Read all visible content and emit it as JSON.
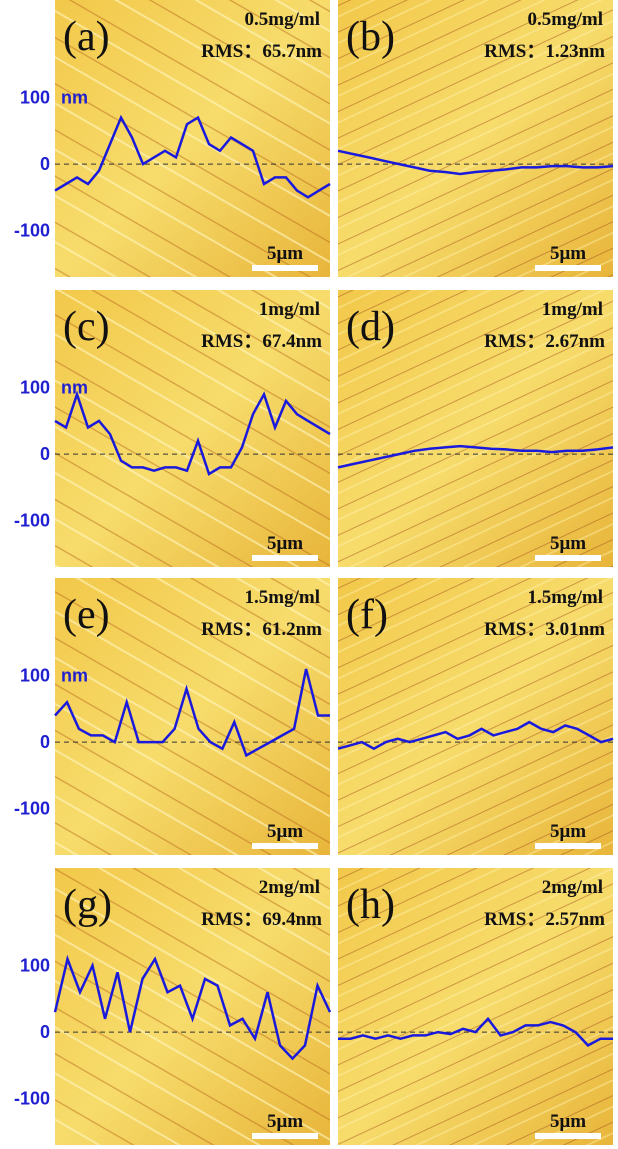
{
  "chart_data": [
    {
      "type": "line",
      "title": "(a)",
      "annotations": [
        "0.5mg/ml",
        "RMS：65.7nm",
        "5μm"
      ],
      "ylabel": "nm",
      "color": "#1a1adc",
      "ylim": [
        -170,
        247
      ],
      "yticks": [
        100,
        0,
        -100
      ],
      "values": [
        -40,
        -30,
        -20,
        -30,
        -10,
        30,
        70,
        40,
        0,
        10,
        20,
        10,
        60,
        70,
        30,
        20,
        40,
        30,
        20,
        -30,
        -20,
        -20,
        -40,
        -50,
        -40,
        -30
      ]
    },
    {
      "type": "line",
      "title": "(b)",
      "annotations": [
        "0.5mg/ml",
        "RMS：1.23nm",
        "5μm"
      ],
      "color": "#1a1adc",
      "ylim": [
        -170,
        247
      ],
      "values": [
        20,
        15,
        10,
        5,
        0,
        -5,
        -10,
        -12,
        -15,
        -12,
        -10,
        -8,
        -5,
        -5,
        -3,
        -3,
        -5,
        -5,
        -3
      ]
    },
    {
      "type": "line",
      "title": "(c)",
      "annotations": [
        "1mg/ml",
        "RMS：67.4nm",
        "5μm"
      ],
      "ylabel": "nm",
      "color": "#1a1adc",
      "ylim": [
        -170,
        247
      ],
      "yticks": [
        100,
        0,
        -100
      ],
      "values": [
        50,
        40,
        90,
        40,
        50,
        30,
        -10,
        -20,
        -20,
        -25,
        -20,
        -20,
        -25,
        20,
        -30,
        -20,
        -20,
        10,
        60,
        90,
        40,
        80,
        60,
        50,
        40,
        30
      ]
    },
    {
      "type": "line",
      "title": "(d)",
      "annotations": [
        "1mg/ml",
        "RMS：2.67nm",
        "5μm"
      ],
      "color": "#1a1adc",
      "ylim": [
        -170,
        247
      ],
      "values": [
        -20,
        -15,
        -10,
        -5,
        0,
        5,
        8,
        10,
        12,
        10,
        8,
        7,
        5,
        5,
        3,
        5,
        5,
        7,
        10
      ]
    },
    {
      "type": "line",
      "title": "(e)",
      "annotations": [
        "1.5mg/ml",
        "RMS：61.2nm",
        "5μm"
      ],
      "ylabel": "nm",
      "color": "#1a1adc",
      "ylim": [
        -170,
        247
      ],
      "yticks": [
        100,
        0,
        -100
      ],
      "values": [
        40,
        60,
        20,
        10,
        10,
        0,
        60,
        0,
        0,
        0,
        20,
        80,
        20,
        0,
        -10,
        30,
        -20,
        -10,
        0,
        10,
        20,
        110,
        40,
        40
      ]
    },
    {
      "type": "line",
      "title": "(f)",
      "annotations": [
        "1.5mg/ml",
        "RMS：3.01nm",
        "5μm"
      ],
      "color": "#1a1adc",
      "ylim": [
        -170,
        247
      ],
      "values": [
        -10,
        -5,
        0,
        -10,
        0,
        5,
        0,
        5,
        10,
        15,
        5,
        10,
        20,
        10,
        15,
        20,
        30,
        20,
        15,
        25,
        20,
        10,
        0,
        5
      ]
    },
    {
      "type": "line",
      "title": "(g)",
      "annotations": [
        "2mg/ml",
        "RMS：69.4nm",
        "5μm"
      ],
      "color": "#1a1adc",
      "ylim": [
        -170,
        247
      ],
      "yticks": [
        100,
        0,
        -100
      ],
      "values": [
        30,
        110,
        60,
        100,
        20,
        90,
        0,
        80,
        110,
        60,
        70,
        20,
        80,
        70,
        10,
        20,
        -10,
        60,
        -20,
        -40,
        -20,
        70,
        30
      ]
    },
    {
      "type": "line",
      "title": "(h)",
      "annotations": [
        "2mg/ml",
        "RMS：2.57nm",
        "5μm"
      ],
      "color": "#1a1adc",
      "ylim": [
        -170,
        247
      ],
      "values": [
        -10,
        -10,
        -5,
        -10,
        -5,
        -10,
        -5,
        -5,
        0,
        -3,
        5,
        0,
        20,
        -5,
        0,
        10,
        10,
        15,
        10,
        0,
        -20,
        -10,
        -10
      ]
    }
  ]
}
